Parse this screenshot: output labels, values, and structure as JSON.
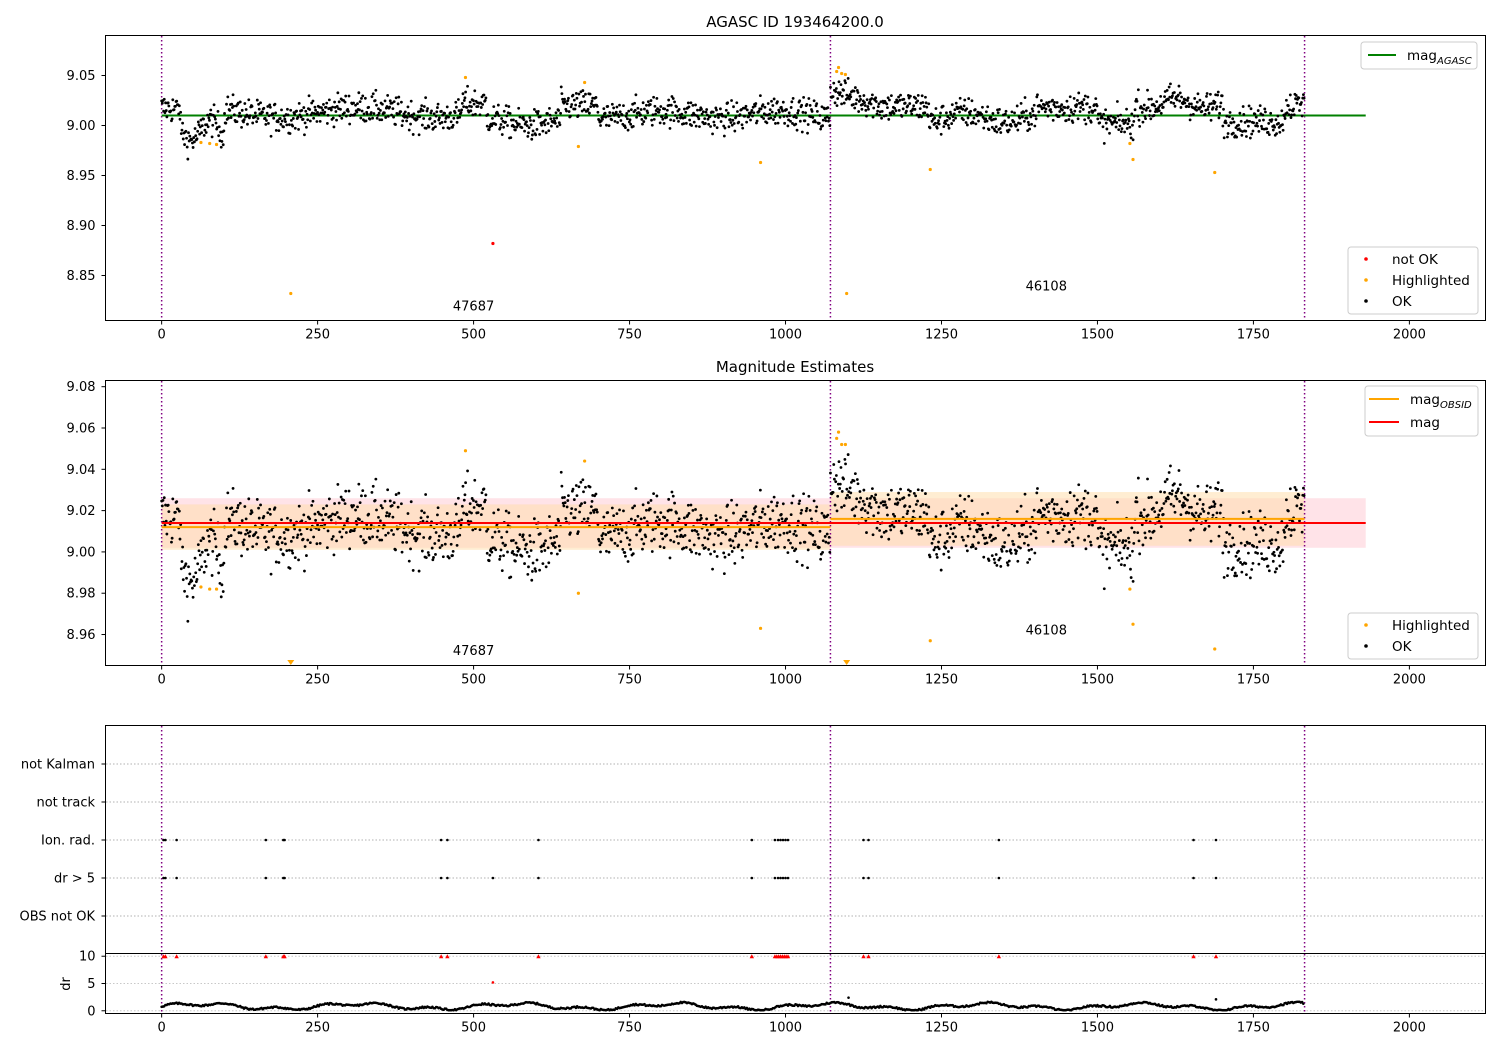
{
  "figure": {
    "title": "AGASC ID 193464200.0",
    "colors": {
      "ok": "#000000",
      "highlighted": "#ffa500",
      "not_ok": "#ff0000",
      "mag_agasc": "#008000",
      "mag_obsid": "#ffa500",
      "mag": "#ff0000",
      "mag_band": "#ffc0cb",
      "mag_obsid_band": "#ffdead",
      "obs_boundary": "#800080",
      "flag_red": "#ff0000"
    },
    "obs_boundaries": [
      0,
      1072,
      1832
    ],
    "obsids": [
      {
        "label": "47687",
        "x": 500
      },
      {
        "label": "46108",
        "x": 1418
      }
    ]
  },
  "chart_data": [
    {
      "type": "scatter",
      "panel": "agasc",
      "title": "AGASC ID 193464200.0",
      "xlim": [
        -90,
        2122
      ],
      "ylim": [
        8.805,
        9.09
      ],
      "x_ticks": [
        0,
        250,
        500,
        750,
        1000,
        1250,
        1500,
        1750,
        2000
      ],
      "y_ticks": [
        8.85,
        8.9,
        8.95,
        9.0,
        9.05
      ],
      "x_tick_labels": [
        "0",
        "250",
        "500",
        "750",
        "1000",
        "1250",
        "1500",
        "1750",
        "2000"
      ],
      "y_tick_labels": [
        "8.85",
        "8.90",
        "8.95",
        "9.00",
        "9.05"
      ],
      "lines": [
        {
          "name": "mag",
          "subscript": "AGASC",
          "y": 9.01,
          "x": [
            0,
            1930
          ],
          "color": "#008000"
        }
      ],
      "legend_top": {
        "position": "top-right",
        "entries": [
          {
            "label": "mag",
            "subscript": "AGASC",
            "kind": "line",
            "color": "#008000"
          }
        ]
      },
      "legend_bottom": {
        "position": "lower-right",
        "entries": [
          {
            "label": "not OK",
            "kind": "dot",
            "color": "#ff0000"
          },
          {
            "label": "Highlighted",
            "kind": "dot",
            "color": "#ffa500"
          },
          {
            "label": "OK",
            "kind": "dot",
            "color": "#000000"
          }
        ]
      },
      "highlighted": [
        [
          63,
          8.983
        ],
        [
          77,
          8.982
        ],
        [
          88,
          8.981
        ],
        [
          207,
          8.832
        ],
        [
          487,
          9.048
        ],
        [
          668,
          8.979
        ],
        [
          678,
          9.043
        ],
        [
          960,
          8.963
        ],
        [
          1082,
          9.054
        ],
        [
          1085,
          9.058
        ],
        [
          1090,
          9.052
        ],
        [
          1096,
          9.051
        ],
        [
          1098,
          8.832
        ],
        [
          1232,
          8.956
        ],
        [
          1552,
          8.982
        ],
        [
          1557,
          8.966
        ],
        [
          1688,
          8.953
        ]
      ],
      "not_ok": [
        [
          531,
          8.882
        ]
      ],
      "obsid_labels": [
        {
          "label": "47687",
          "x": 500,
          "y": 8.815
        },
        {
          "label": "46108",
          "x": 1418,
          "y": 8.835
        }
      ]
    },
    {
      "type": "scatter",
      "panel": "estimates",
      "title": "Magnitude Estimates",
      "xlim": [
        -90,
        2122
      ],
      "ylim": [
        8.945,
        9.083
      ],
      "x_ticks": [
        0,
        250,
        500,
        750,
        1000,
        1250,
        1500,
        1750,
        2000
      ],
      "y_ticks": [
        8.96,
        8.98,
        9.0,
        9.02,
        9.04,
        9.06,
        9.08
      ],
      "x_tick_labels": [
        "0",
        "250",
        "500",
        "750",
        "1000",
        "1250",
        "1500",
        "1750",
        "2000"
      ],
      "y_tick_labels": [
        "8.96",
        "8.98",
        "9.00",
        "9.02",
        "9.04",
        "9.06",
        "9.08"
      ],
      "mag": {
        "y": 9.014,
        "band": [
          9.002,
          9.026
        ],
        "x": [
          0,
          1930
        ],
        "color": "#ff0000"
      },
      "mag_obsid": [
        {
          "x": [
            0,
            1072
          ],
          "y": 9.012,
          "band": [
            9.001,
            9.023
          ]
        },
        {
          "x": [
            1072,
            1832
          ],
          "y": 9.016,
          "band": [
            9.003,
            9.029
          ]
        }
      ],
      "legend_top": {
        "position": "top-right",
        "entries": [
          {
            "label": "mag",
            "subscript": "OBSID",
            "kind": "line",
            "color": "#ffa500"
          },
          {
            "label": "mag",
            "subscript": "",
            "kind": "line",
            "color": "#ff0000"
          }
        ]
      },
      "legend_bottom": {
        "position": "lower-right",
        "entries": [
          {
            "label": "Highlighted",
            "kind": "dot",
            "color": "#ffa500"
          },
          {
            "label": "OK",
            "kind": "dot",
            "color": "#000000"
          }
        ]
      },
      "highlighted": [
        [
          63,
          8.983
        ],
        [
          77,
          8.982
        ],
        [
          88,
          8.982
        ],
        [
          487,
          9.049
        ],
        [
          668,
          8.98
        ],
        [
          678,
          9.044
        ],
        [
          960,
          8.963
        ],
        [
          1082,
          9.055
        ],
        [
          1085,
          9.058
        ],
        [
          1090,
          9.052
        ],
        [
          1096,
          9.052
        ],
        [
          1232,
          8.957
        ],
        [
          1552,
          8.982
        ],
        [
          1557,
          8.965
        ],
        [
          1688,
          8.953
        ]
      ],
      "offscale_markers": [
        [
          207,
          8.947
        ],
        [
          1098,
          8.947
        ]
      ],
      "obsid_labels": [
        {
          "label": "47687",
          "x": 500,
          "y": 8.95
        },
        {
          "label": "46108",
          "x": 1418,
          "y": 8.96
        }
      ]
    },
    {
      "type": "scatter",
      "panel": "flags",
      "xlim": [
        -90,
        2122
      ],
      "categories": [
        "not Kalman",
        "not track",
        "Ion. rad.",
        "dr > 5",
        "OBS not OK"
      ],
      "flag_points": {
        "Ion. rad.": [
          3,
          6,
          24,
          167,
          195,
          197,
          448,
          458,
          604,
          946,
          983,
          988,
          992,
          996,
          1000,
          1004,
          1125,
          1133,
          1342,
          1654,
          1690
        ],
        "dr > 5": [
          3,
          6,
          24,
          167,
          195,
          197,
          448,
          458,
          531,
          604,
          946,
          983,
          988,
          992,
          996,
          1000,
          1004,
          1125,
          1133,
          1342,
          1654,
          1690
        ]
      }
    },
    {
      "type": "scatter",
      "panel": "dr",
      "ylabel": "dr",
      "xlim": [
        -90,
        2122
      ],
      "ylim": [
        -0.5,
        10.5
      ],
      "x_ticks": [
        0,
        250,
        500,
        750,
        1000,
        1250,
        1500,
        1750,
        2000
      ],
      "y_ticks": [
        0,
        5,
        10
      ],
      "x_tick_labels": [
        "0",
        "250",
        "500",
        "750",
        "1000",
        "1250",
        "1500",
        "1750",
        "2000"
      ],
      "y_tick_labels": [
        "0",
        "5",
        "10"
      ],
      "dr_clipped_at_10": [
        3,
        6,
        24,
        167,
        195,
        197,
        448,
        458,
        604,
        946,
        983,
        986,
        989,
        992,
        995,
        998,
        1001,
        1004,
        1125,
        1133,
        1342,
        1654,
        1690
      ],
      "dr_outliers": [
        [
          531,
          5.2
        ],
        [
          1101,
          2.4
        ],
        [
          1690,
          2.1
        ]
      ]
    }
  ]
}
